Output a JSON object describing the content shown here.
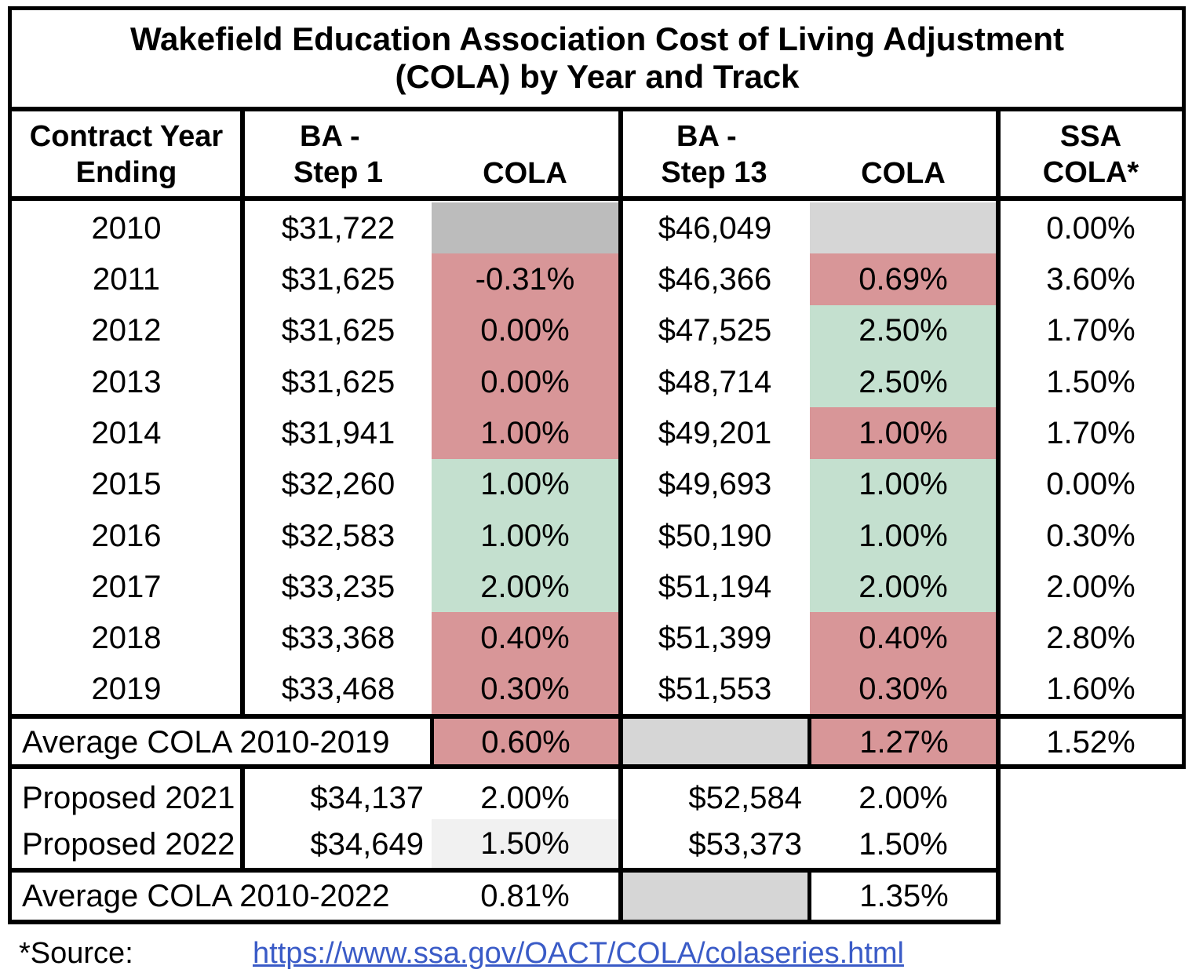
{
  "title": {
    "line1": "Wakefield Education Association Cost of Living Adjustment",
    "line2": "(COLA) by Year and Track"
  },
  "headers": {
    "year": [
      "Contract Year",
      "Ending"
    ],
    "step1": [
      "BA -",
      "Step 1"
    ],
    "step1_cola": "COLA",
    "step13": [
      "BA -",
      "Step 13"
    ],
    "step13_cola": "COLA",
    "ssa": [
      "SSA",
      "COLA*"
    ]
  },
  "colors": {
    "red": "#d89698",
    "green": "#c4e0cf",
    "gray_dark": "#bcbcbc",
    "gray_light": "#d6d6d6",
    "gray_faint": "#f1f1f1",
    "link": "#3a5bc7"
  },
  "rows": [
    {
      "year": "2010",
      "step1": "$31,722",
      "step1_cola": "",
      "step1_color": "gray",
      "step13": "$46,049",
      "step13_cola": "",
      "step13_color": "gray",
      "ssa": "0.00%"
    },
    {
      "year": "2011",
      "step1": "$31,625",
      "step1_cola": "-0.31%",
      "step1_color": "red",
      "step13": "$46,366",
      "step13_cola": "0.69%",
      "step13_color": "red",
      "ssa": "3.60%"
    },
    {
      "year": "2012",
      "step1": "$31,625",
      "step1_cola": "0.00%",
      "step1_color": "red",
      "step13": "$47,525",
      "step13_cola": "2.50%",
      "step13_color": "green",
      "ssa": "1.70%"
    },
    {
      "year": "2013",
      "step1": "$31,625",
      "step1_cola": "0.00%",
      "step1_color": "red",
      "step13": "$48,714",
      "step13_cola": "2.50%",
      "step13_color": "green",
      "ssa": "1.50%"
    },
    {
      "year": "2014",
      "step1": "$31,941",
      "step1_cola": "1.00%",
      "step1_color": "red",
      "step13": "$49,201",
      "step13_cola": "1.00%",
      "step13_color": "red",
      "ssa": "1.70%"
    },
    {
      "year": "2015",
      "step1": "$32,260",
      "step1_cola": "1.00%",
      "step1_color": "green",
      "step13": "$49,693",
      "step13_cola": "1.00%",
      "step13_color": "green",
      "ssa": "0.00%"
    },
    {
      "year": "2016",
      "step1": "$32,583",
      "step1_cola": "1.00%",
      "step1_color": "green",
      "step13": "$50,190",
      "step13_cola": "1.00%",
      "step13_color": "green",
      "ssa": "0.30%"
    },
    {
      "year": "2017",
      "step1": "$33,235",
      "step1_cola": "2.00%",
      "step1_color": "green",
      "step13": "$51,194",
      "step13_cola": "2.00%",
      "step13_color": "green",
      "ssa": "2.00%"
    },
    {
      "year": "2018",
      "step1": "$33,368",
      "step1_cola": "0.40%",
      "step1_color": "red",
      "step13": "$51,399",
      "step13_cola": "0.40%",
      "step13_color": "red",
      "ssa": "2.80%"
    },
    {
      "year": "2019",
      "step1": "$33,468",
      "step1_cola": "0.30%",
      "step1_color": "red",
      "step13": "$51,553",
      "step13_cola": "0.30%",
      "step13_color": "red",
      "ssa": "1.60%"
    }
  ],
  "average_2019": {
    "label": "Average COLA 2010-2019",
    "step1_cola": "0.60%",
    "step13_cola": "1.27%",
    "ssa": "1.52%"
  },
  "proposed": [
    {
      "label": "Proposed 2021",
      "step1": "$34,137",
      "step1_cola": "2.00%",
      "step13": "$52,584",
      "step13_cola": "2.00%"
    },
    {
      "label": "Proposed 2022",
      "step1": "$34,649",
      "step1_cola": "1.50%",
      "step13": "$53,373",
      "step13_cola": "1.50%"
    }
  ],
  "average_2022": {
    "label": "Average COLA 2010-2022",
    "step1_cola": "0.81%",
    "step13_cola": "1.35%"
  },
  "footer": {
    "source_label": "*Source:",
    "source_url": "https://www.ssa.gov/OACT/COLA/colaseries.html"
  }
}
